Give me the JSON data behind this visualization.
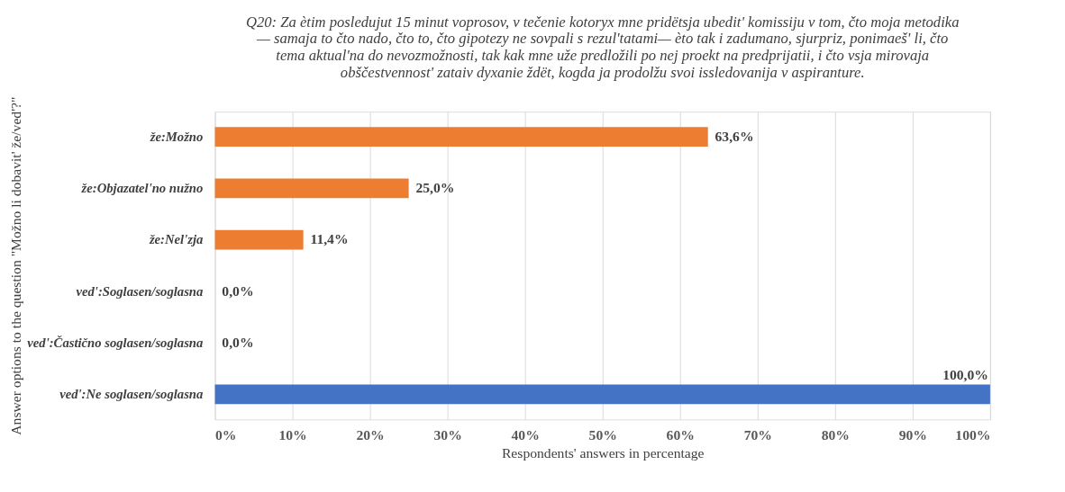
{
  "chart_data": {
    "type": "bar",
    "orientation": "horizontal",
    "title": "Q20: Za ètim posledujut 15 minut voprosov, v tečenie kotoryx mne pridëtsja ubedit' komissiju v tom, čto moja metodika — samaja to čto nado, čto to, čto gipotezy ne sovpali s rezul'tatami— èto tak i zadumano, sjurpriz, ponimaeš' li, čto tema aktual'na do nevozmožnosti, tak kak mne uže predložili po nej proekt na predprijatii, i čto vsja mirovaja obščestvennost' zataiv dyxanie ždët, kogda ja prodolžu svoi issledovanija v aspiranture.",
    "xlabel": "Respondents' answers in percentage",
    "ylabel": "Answer options to the question \"Možno li dobavit' že/ved'?\"",
    "categories": [
      "že:Možno",
      "že:Objazatel'no nužno",
      "že:Nel'zja",
      "ved':Soglasen/soglasna",
      "ved':Častično soglasen/soglasna",
      "ved':Ne soglasen/soglasna"
    ],
    "values": [
      63.6,
      25.0,
      11.4,
      0.0,
      0.0,
      100.0
    ],
    "colors": [
      "#ed7d31",
      "#ed7d31",
      "#ed7d31",
      "#ed7d31",
      "#ed7d31",
      "#4472c4"
    ],
    "value_labels": [
      "63,6%",
      "25,0%",
      "11,4%",
      "0,0%",
      "0,0%",
      "100,0%"
    ],
    "xlim": [
      0,
      100
    ],
    "xticks": [
      {
        "value": 0,
        "label": "0%"
      },
      {
        "value": 10,
        "label": "10%"
      },
      {
        "value": 20,
        "label": "20%"
      },
      {
        "value": 30,
        "label": "30%"
      },
      {
        "value": 40,
        "label": "40%"
      },
      {
        "value": 50,
        "label": "50%"
      },
      {
        "value": 60,
        "label": "60%"
      },
      {
        "value": 70,
        "label": "70%"
      },
      {
        "value": 80,
        "label": "80%"
      },
      {
        "value": 90,
        "label": "90%"
      },
      {
        "value": 100,
        "label": "100%"
      }
    ],
    "grid": "x"
  }
}
